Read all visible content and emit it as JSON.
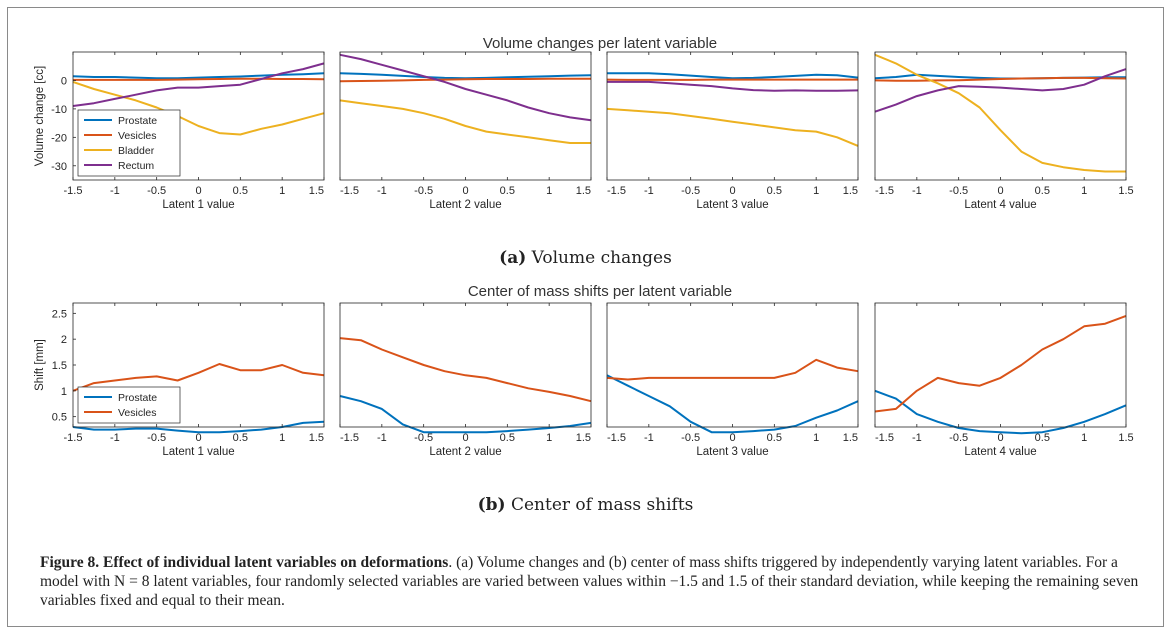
{
  "figure": {
    "top_title": "Volume changes per latent variable",
    "bottom_title": "Center of mass shifts per latent variable",
    "sub_a_label": "(a)",
    "sub_a_text": "Volume changes",
    "sub_b_label": "(b)",
    "sub_b_text": "Center of mass shifts",
    "caption_title": "Figure 8. Effect of individual latent variables on deformations",
    "caption_body": ". (a) Volume changes and (b) center of mass shifts triggered by independently varying latent variables. For a model with N = 8 latent variables, four randomly selected variables are varied between values within −1.5 and 1.5 of their standard deviation, while keeping the remaining seven variables fixed and equal to their mean."
  },
  "colors": {
    "Prostate": "#0072BD",
    "Vesicles": "#D95319",
    "Bladder": "#EDB120",
    "Rectum": "#7E2F8E"
  },
  "chart_data": [
    {
      "type": "line",
      "group": "volume",
      "title": "Volume changes per latent variable",
      "panels": [
        "Latent 1 value",
        "Latent 2 value",
        "Latent 3 value",
        "Latent 4 value"
      ],
      "xlabel": "Latent 1 value",
      "ylabel": "Volume change [cc]",
      "xlim": [
        -1.5,
        1.5
      ],
      "ylim": [
        -35,
        10
      ],
      "xticks": [
        -1.5,
        -1,
        -0.5,
        0,
        0.5,
        1,
        1.5
      ],
      "yticks": [
        0,
        -10,
        -20,
        -30
      ],
      "legend": "bottom-left of panel 1",
      "grid": false,
      "x": [
        -1.5,
        -1.25,
        -1,
        -0.75,
        -0.5,
        -0.25,
        0,
        0.25,
        0.5,
        0.75,
        1,
        1.25,
        1.5
      ],
      "series": [
        {
          "name": "Prostate",
          "values": [
            1.5,
            1.2,
            1.2,
            1.0,
            0.8,
            0.8,
            1.0,
            1.2,
            1.4,
            1.7,
            2.0,
            2.2,
            2.5
          ]
        },
        {
          "name": "Vesicles",
          "values": [
            0.2,
            0.2,
            0.2,
            0.2,
            0.2,
            0.3,
            0.4,
            0.5,
            0.6,
            0.6,
            0.5,
            0.5,
            0.4
          ]
        },
        {
          "name": "Bladder",
          "values": [
            -0.5,
            -3.0,
            -5.0,
            -7.0,
            -9.5,
            -12.5,
            -16.0,
            -18.5,
            -19.0,
            -17.0,
            -15.5,
            -13.5,
            -11.5
          ]
        },
        {
          "name": "Rectum",
          "values": [
            -9.0,
            -8.0,
            -6.5,
            -5.0,
            -3.5,
            -2.5,
            -2.5,
            -2.0,
            -1.5,
            0.5,
            2.5,
            4.0,
            6.0
          ]
        }
      ]
    },
    {
      "type": "line",
      "group": "volume",
      "xlabel": "Latent 2 value",
      "xlim": [
        -1.5,
        1.5
      ],
      "ylim": [
        -35,
        10
      ],
      "x": [
        -1.5,
        -1.25,
        -1,
        -0.75,
        -0.5,
        -0.25,
        0,
        0.25,
        0.5,
        0.75,
        1,
        1.25,
        1.5
      ],
      "series": [
        {
          "name": "Prostate",
          "values": [
            2.5,
            2.3,
            2.0,
            1.6,
            1.2,
            0.9,
            0.8,
            0.9,
            1.1,
            1.3,
            1.5,
            1.7,
            1.8
          ]
        },
        {
          "name": "Vesicles",
          "values": [
            -0.3,
            -0.2,
            -0.1,
            0.0,
            0.2,
            0.3,
            0.4,
            0.5,
            0.5,
            0.5,
            0.6,
            0.6,
            0.6
          ]
        },
        {
          "name": "Bladder",
          "values": [
            -7.0,
            -8.0,
            -9.0,
            -10.0,
            -11.5,
            -13.5,
            -16.0,
            -18.0,
            -19.0,
            -20.0,
            -21.0,
            -22.0,
            -22.0
          ]
        },
        {
          "name": "Rectum",
          "values": [
            9.0,
            7.5,
            5.5,
            3.5,
            1.5,
            -0.5,
            -3.0,
            -5.0,
            -7.0,
            -9.5,
            -11.5,
            -13.0,
            -14.0
          ]
        }
      ]
    },
    {
      "type": "line",
      "group": "volume",
      "xlabel": "Latent 3 value",
      "xlim": [
        -1.5,
        1.5
      ],
      "ylim": [
        -35,
        10
      ],
      "x": [
        -1.5,
        -1.25,
        -1,
        -0.75,
        -0.5,
        -0.25,
        0,
        0.25,
        0.5,
        0.75,
        1,
        1.25,
        1.5
      ],
      "series": [
        {
          "name": "Prostate",
          "values": [
            2.5,
            2.5,
            2.5,
            2.2,
            1.7,
            1.2,
            0.8,
            0.9,
            1.2,
            1.6,
            2.0,
            1.8,
            1.0
          ]
        },
        {
          "name": "Vesicles",
          "values": [
            0.3,
            0.2,
            0.2,
            0.2,
            0.2,
            0.3,
            0.3,
            0.3,
            0.3,
            0.3,
            0.3,
            0.3,
            0.3
          ]
        },
        {
          "name": "Bladder",
          "values": [
            -10.0,
            -10.5,
            -11.0,
            -11.5,
            -12.5,
            -13.5,
            -14.5,
            -15.5,
            -16.5,
            -17.5,
            -18.0,
            -20.0,
            -23.0
          ]
        },
        {
          "name": "Rectum",
          "values": [
            -0.5,
            -0.5,
            -0.5,
            -1.0,
            -1.5,
            -2.0,
            -2.8,
            -3.4,
            -3.6,
            -3.5,
            -3.6,
            -3.6,
            -3.5
          ]
        }
      ]
    },
    {
      "type": "line",
      "group": "volume",
      "xlabel": "Latent 4 value",
      "xlim": [
        -1.5,
        1.5
      ],
      "ylim": [
        -35,
        10
      ],
      "x": [
        -1.5,
        -1.25,
        -1,
        -0.75,
        -0.5,
        -0.25,
        0,
        0.25,
        0.5,
        0.75,
        1,
        1.25,
        1.5
      ],
      "series": [
        {
          "name": "Prostate",
          "values": [
            0.8,
            1.2,
            2.0,
            1.6,
            1.2,
            0.9,
            0.7,
            0.7,
            0.8,
            0.9,
            1.0,
            1.1,
            1.1
          ]
        },
        {
          "name": "Vesicles",
          "values": [
            0.0,
            -0.1,
            -0.1,
            0.0,
            0.1,
            0.3,
            0.5,
            0.7,
            0.8,
            0.9,
            0.9,
            0.8,
            0.7
          ]
        },
        {
          "name": "Bladder",
          "values": [
            9.0,
            6.0,
            2.0,
            -1.0,
            -4.5,
            -9.5,
            -17.5,
            -25.0,
            -29.0,
            -30.5,
            -31.5,
            -32.0,
            -32.0
          ]
        },
        {
          "name": "Rectum",
          "values": [
            -11.0,
            -8.5,
            -5.5,
            -3.5,
            -2.0,
            -2.2,
            -2.5,
            -3.0,
            -3.5,
            -3.0,
            -1.5,
            1.5,
            4.0
          ]
        }
      ]
    },
    {
      "type": "line",
      "group": "shift",
      "title": "Center of mass shifts per latent variable",
      "xlabel": "Latent 1 value",
      "ylabel": "Shift [mm]",
      "xlim": [
        -1.5,
        1.5
      ],
      "ylim": [
        0.3,
        2.7
      ],
      "xticks": [
        -1.5,
        -1,
        -0.5,
        0,
        0.5,
        1,
        1.5
      ],
      "yticks": [
        0.5,
        1,
        1.5,
        2,
        2.5
      ],
      "legend": "bottom-left of panel 1",
      "grid": false,
      "x": [
        -1.5,
        -1.25,
        -1,
        -0.75,
        -0.5,
        -0.25,
        0,
        0.25,
        0.5,
        0.75,
        1,
        1.25,
        1.5
      ],
      "series": [
        {
          "name": "Prostate",
          "values": [
            0.3,
            0.25,
            0.25,
            0.27,
            0.27,
            0.23,
            0.2,
            0.2,
            0.22,
            0.25,
            0.3,
            0.38,
            0.4
          ]
        },
        {
          "name": "Vesicles",
          "values": [
            1.0,
            1.15,
            1.2,
            1.25,
            1.28,
            1.2,
            1.35,
            1.52,
            1.4,
            1.4,
            1.5,
            1.35,
            1.3
          ]
        }
      ]
    },
    {
      "type": "line",
      "group": "shift",
      "xlabel": "Latent 2 value",
      "xlim": [
        -1.5,
        1.5
      ],
      "ylim": [
        0.3,
        2.7
      ],
      "x": [
        -1.5,
        -1.25,
        -1,
        -0.75,
        -0.5,
        -0.25,
        0,
        0.25,
        0.5,
        0.75,
        1,
        1.25,
        1.5
      ],
      "series": [
        {
          "name": "Prostate",
          "values": [
            0.9,
            0.8,
            0.65,
            0.35,
            0.2,
            0.2,
            0.2,
            0.2,
            0.22,
            0.25,
            0.28,
            0.32,
            0.38
          ]
        },
        {
          "name": "Vesicles",
          "values": [
            2.02,
            1.98,
            1.8,
            1.65,
            1.5,
            1.38,
            1.3,
            1.25,
            1.15,
            1.05,
            0.98,
            0.9,
            0.8
          ]
        }
      ]
    },
    {
      "type": "line",
      "group": "shift",
      "xlabel": "Latent 3 value",
      "xlim": [
        -1.5,
        1.5
      ],
      "ylim": [
        0.3,
        2.7
      ],
      "x": [
        -1.5,
        -1.25,
        -1,
        -0.75,
        -0.5,
        -0.25,
        0,
        0.25,
        0.5,
        0.75,
        1,
        1.25,
        1.5
      ],
      "series": [
        {
          "name": "Prostate",
          "values": [
            1.3,
            1.1,
            0.9,
            0.7,
            0.4,
            0.2,
            0.2,
            0.22,
            0.25,
            0.32,
            0.48,
            0.62,
            0.8
          ]
        },
        {
          "name": "Vesicles",
          "values": [
            1.25,
            1.22,
            1.25,
            1.25,
            1.25,
            1.25,
            1.25,
            1.25,
            1.25,
            1.35,
            1.6,
            1.45,
            1.38
          ]
        }
      ]
    },
    {
      "type": "line",
      "group": "shift",
      "xlabel": "Latent 4 value",
      "xlim": [
        -1.5,
        1.5
      ],
      "ylim": [
        0.3,
        2.7
      ],
      "x": [
        -1.5,
        -1.25,
        -1,
        -0.75,
        -0.5,
        -0.25,
        0,
        0.25,
        0.5,
        0.75,
        1,
        1.25,
        1.5
      ],
      "series": [
        {
          "name": "Prostate",
          "values": [
            1.0,
            0.85,
            0.55,
            0.4,
            0.28,
            0.22,
            0.2,
            0.18,
            0.2,
            0.28,
            0.4,
            0.55,
            0.72
          ]
        },
        {
          "name": "Vesicles",
          "values": [
            0.6,
            0.65,
            1.0,
            1.25,
            1.15,
            1.1,
            1.25,
            1.5,
            1.8,
            2.0,
            2.25,
            2.3,
            2.45
          ]
        }
      ]
    }
  ]
}
